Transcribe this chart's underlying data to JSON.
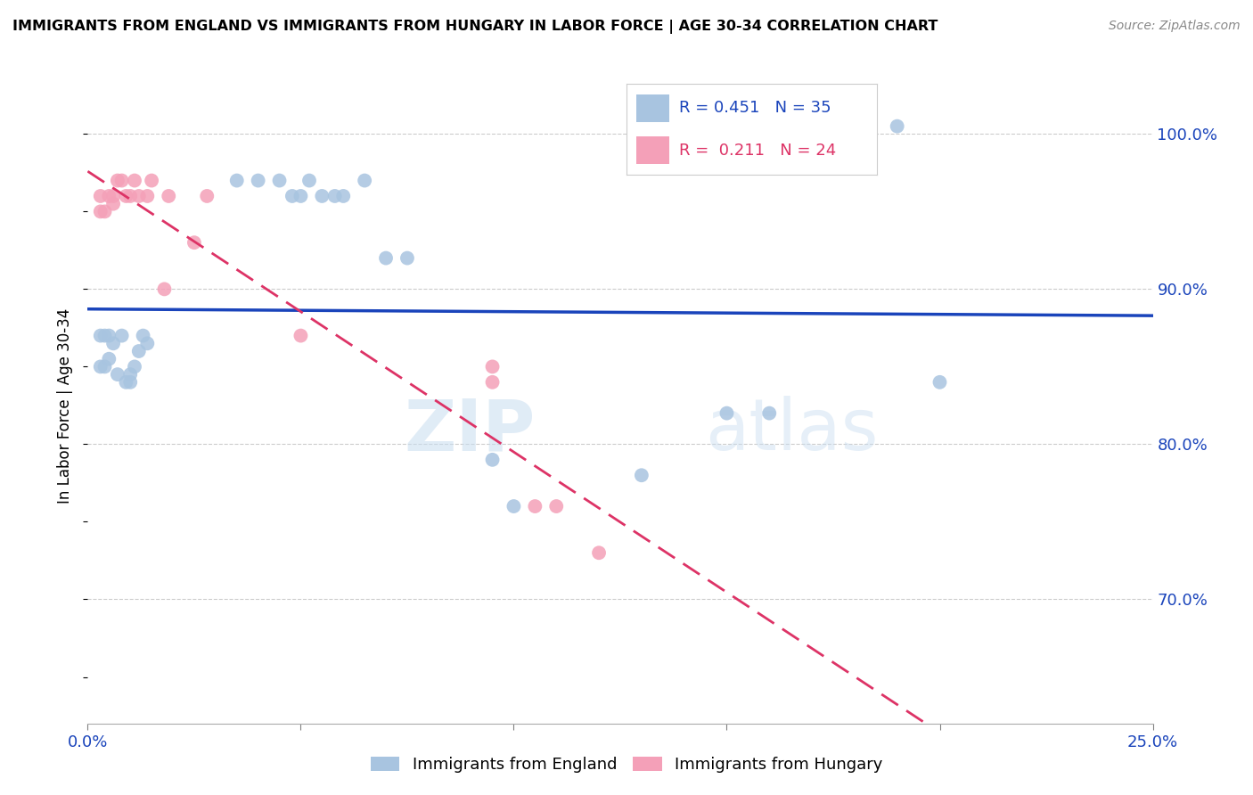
{
  "title": "IMMIGRANTS FROM ENGLAND VS IMMIGRANTS FROM HUNGARY IN LABOR FORCE | AGE 30-34 CORRELATION CHART",
  "source": "Source: ZipAtlas.com",
  "ylabel": "In Labor Force | Age 30-34",
  "xlim": [
    0.0,
    0.25
  ],
  "ylim": [
    0.62,
    1.03
  ],
  "xticks": [
    0.0,
    0.05,
    0.1,
    0.15,
    0.2,
    0.25
  ],
  "xticklabels": [
    "0.0%",
    "",
    "",
    "",
    "",
    "25.0%"
  ],
  "ytick_positions": [
    0.7,
    0.8,
    0.9,
    1.0
  ],
  "ytick_labels": [
    "70.0%",
    "80.0%",
    "90.0%",
    "100.0%"
  ],
  "england_color": "#a8c4e0",
  "hungary_color": "#f4a0b8",
  "england_line_color": "#1a44bb",
  "hungary_line_color": "#dd3366",
  "england_R": 0.451,
  "england_N": 35,
  "hungary_R": 0.211,
  "hungary_N": 24,
  "watermark_zip": "ZIP",
  "watermark_atlas": "atlas",
  "england_x": [
    0.003,
    0.003,
    0.004,
    0.004,
    0.005,
    0.005,
    0.006,
    0.007,
    0.008,
    0.009,
    0.01,
    0.01,
    0.011,
    0.012,
    0.013,
    0.014,
    0.035,
    0.04,
    0.045,
    0.048,
    0.05,
    0.052,
    0.055,
    0.058,
    0.06,
    0.065,
    0.07,
    0.075,
    0.095,
    0.1,
    0.13,
    0.15,
    0.16,
    0.19,
    0.2
  ],
  "england_y": [
    0.87,
    0.85,
    0.87,
    0.85,
    0.87,
    0.855,
    0.865,
    0.845,
    0.87,
    0.84,
    0.84,
    0.845,
    0.85,
    0.86,
    0.87,
    0.865,
    0.97,
    0.97,
    0.97,
    0.96,
    0.96,
    0.97,
    0.96,
    0.96,
    0.96,
    0.97,
    0.92,
    0.92,
    0.79,
    0.76,
    0.78,
    0.82,
    0.82,
    1.005,
    0.84
  ],
  "hungary_x": [
    0.003,
    0.003,
    0.004,
    0.005,
    0.006,
    0.006,
    0.007,
    0.008,
    0.009,
    0.01,
    0.011,
    0.012,
    0.014,
    0.015,
    0.018,
    0.019,
    0.025,
    0.028,
    0.05,
    0.095,
    0.095,
    0.105,
    0.11,
    0.12
  ],
  "hungary_y": [
    0.96,
    0.95,
    0.95,
    0.96,
    0.96,
    0.955,
    0.97,
    0.97,
    0.96,
    0.96,
    0.97,
    0.96,
    0.96,
    0.97,
    0.9,
    0.96,
    0.93,
    0.96,
    0.87,
    0.85,
    0.84,
    0.76,
    0.76,
    0.73
  ]
}
